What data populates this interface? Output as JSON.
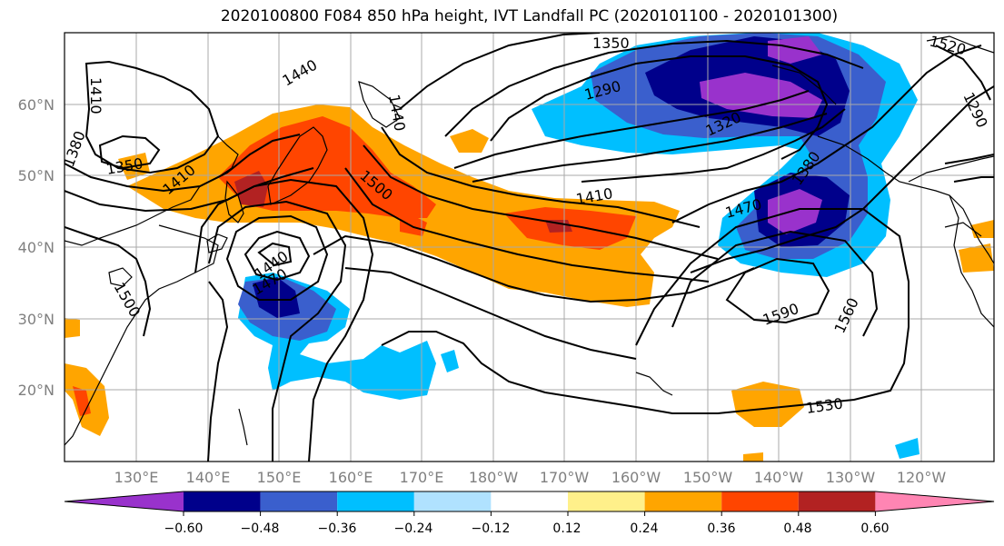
{
  "title": "2020100800 F084 850 hPa height, IVT Landfall PC (2020101100 - 2020101300)",
  "lat_labels": [
    "60°N",
    "50°N",
    "40°N",
    "30°N",
    "20°N"
  ],
  "lon_labels": [
    "130°E",
    "140°E",
    "150°E",
    "160°E",
    "170°E",
    "180°W",
    "170°W",
    "160°W",
    "150°W",
    "140°W",
    "130°W",
    "120°W"
  ],
  "colorbar": {
    "colors": [
      "#9932cc",
      "#00008b",
      "#3a5fcd",
      "#00bfff",
      "#b0e2ff",
      "#ffffff",
      "#fff08a",
      "#ffa500",
      "#ff4500",
      "#b22222",
      "#ff85b3"
    ],
    "tick_labels": [
      "−0.60",
      "−0.48",
      "−0.36",
      "−0.24",
      "−0.12",
      "0.12",
      "0.24",
      "0.36",
      "0.48",
      "0.60"
    ]
  },
  "contour_labels": [
    "1350",
    "1440",
    "1410",
    "1380",
    "1350",
    "1410",
    "1440",
    "1500",
    "1290",
    "1320",
    "1410",
    "1470",
    "1380",
    "1520",
    "1290",
    "1440",
    "1470",
    "1500",
    "1590",
    "1560",
    "1530"
  ]
}
